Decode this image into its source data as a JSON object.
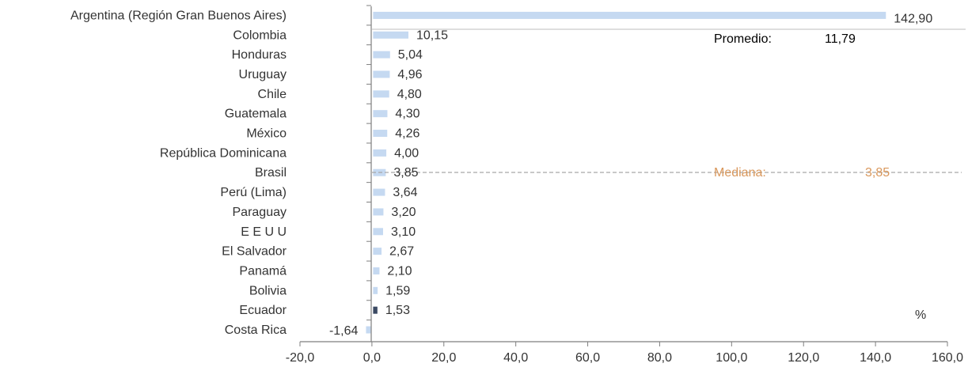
{
  "chart_data": {
    "type": "bar",
    "orientation": "horizontal",
    "categories": [
      "Argentina (Región Gran Buenos Aires)",
      "Colombia",
      "Honduras",
      "Uruguay",
      "Chile",
      "Guatemala",
      "México",
      "República Dominicana",
      "Brasil",
      "Perú (Lima)",
      "Paraguay",
      "E E U U",
      "El Salvador",
      "Panamá",
      "Bolivia",
      "Ecuador",
      "Costa Rica"
    ],
    "values": [
      142.9,
      10.15,
      5.04,
      4.96,
      4.8,
      4.3,
      4.26,
      4.0,
      3.85,
      3.64,
      3.2,
      3.1,
      2.67,
      2.1,
      1.59,
      1.53,
      -1.64
    ],
    "value_labels": [
      "142,90",
      "10,15",
      "5,04",
      "4,96",
      "4,80",
      "4,30",
      "4,26",
      "4,00",
      "3,85",
      "3,64",
      "3,20",
      "3,10",
      "2,67",
      "2,10",
      "1,59",
      "1,53",
      "-1,64"
    ],
    "highlight_category": "Ecuador",
    "xlim": [
      -20,
      160
    ],
    "xticks": [
      -20,
      0,
      20,
      40,
      60,
      80,
      100,
      120,
      140,
      160
    ],
    "xtick_labels": [
      "-20,0",
      "0,0",
      "20,0",
      "40,0",
      "60,0",
      "80,0",
      "100,0",
      "120,0",
      "140,0",
      "160,0"
    ],
    "unit_label": "%",
    "average": {
      "label": "Promedio:",
      "value": 11.79,
      "value_label": "11,79"
    },
    "median": {
      "label": "Mediana:",
      "value": 3.85,
      "value_label": "3,85"
    },
    "grid": false,
    "colors": {
      "bar": "#c5d9f1",
      "highlight_bar": "#3b4a63",
      "axis": "#7f7f7f",
      "median": "#d9975b",
      "reference_line": "#a6a6a6",
      "text": "#333333",
      "average_text": "#000000"
    }
  }
}
